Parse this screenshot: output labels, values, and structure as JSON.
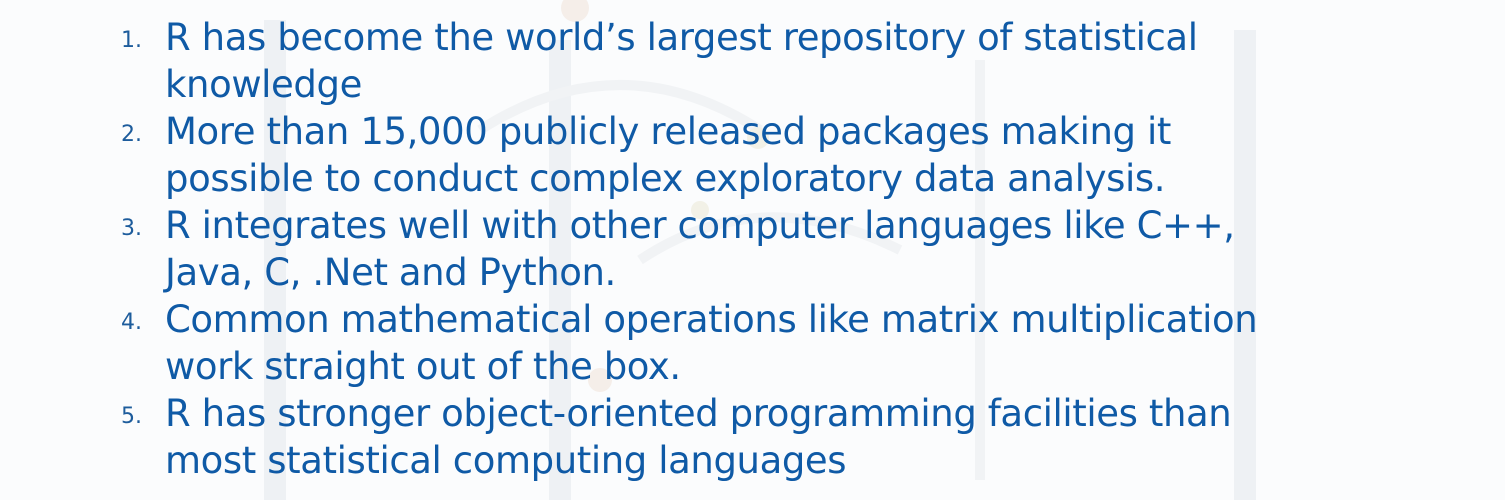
{
  "items": [
    {
      "number": "1.",
      "lines": [
        "R has become the world’s largest repository of statistical",
        "knowledge"
      ]
    },
    {
      "number": "2.",
      "lines": [
        "More than 15,000 publicly released packages making it",
        "possible to conduct complex exploratory data analysis."
      ]
    },
    {
      "number": "3.",
      "lines": [
        "R integrates well with other computer languages like C++,",
        "Java, C, .Net and Python."
      ]
    },
    {
      "number": "4.",
      "lines": [
        "Common mathematical operations like matrix multiplication",
        "work straight out of the box."
      ]
    },
    {
      "number": "5.",
      "lines": [
        "R has stronger object-oriented programming facilities than",
        "most statistical computing languages"
      ]
    }
  ],
  "colors": {
    "text": "#0f5aa6",
    "background": "#fbfcfd"
  }
}
